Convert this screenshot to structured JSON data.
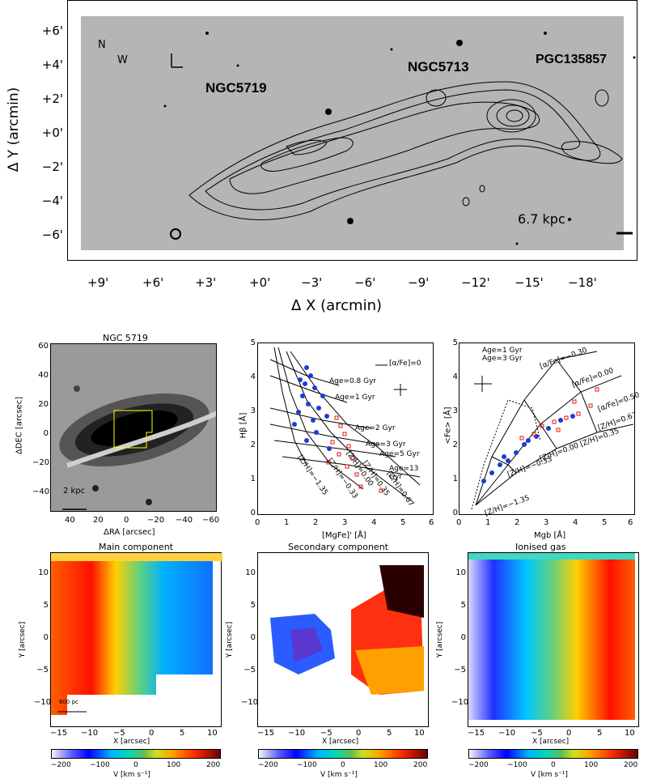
{
  "top_image": {
    "labels": {
      "ngc5719": "NGC5719",
      "ngc5713": "NGC5713",
      "pgc": "PGC135857",
      "scale": "6.7 kpc",
      "compass_n": "N",
      "compass_w": "W"
    },
    "xlabel": "Δ X (arcmin)",
    "ylabel": "Δ Y (arcmin)",
    "xticks": [
      "+9'",
      "+6'",
      "+3'",
      "+0'",
      "−3'",
      "−6'",
      "−9'",
      "−12'",
      "−15'",
      "−18'"
    ],
    "yticks": [
      "+6'",
      "+4'",
      "+2'",
      "+0'",
      "−2'",
      "−4'",
      "−6'"
    ]
  },
  "ngc5719_panel": {
    "title": "NGC 5719",
    "xlabel": "ΔRA [arcsec]",
    "ylabel": "ΔDEC [arcsec]",
    "scale": "2 kpc",
    "xticks": [
      "40",
      "20",
      "0",
      "−20",
      "−40",
      "−60"
    ],
    "yticks": [
      "60",
      "40",
      "20",
      "0",
      "−20",
      "−40"
    ]
  },
  "hbeta_panel": {
    "xlabel": "[MgFe]' [Å]",
    "ylabel": "Hβ [Å]",
    "legend": "[α/Fe]=0",
    "age_labels": [
      "Age=0.8 Gyr",
      "Age=1 Gyr",
      "Age=2 Gyr",
      "Age=3 Gyr",
      "Age=5 Gyr",
      "Age=13 Gyr"
    ],
    "zh_labels": [
      "[Z/H]=−1.35",
      "[Z/H]=−0.33",
      "[Z/H]=0.00",
      "[Z/H]=0.35",
      "[Z/H]=0.67"
    ],
    "xticks": [
      "0",
      "1",
      "2",
      "3",
      "4",
      "5",
      "6"
    ],
    "yticks": [
      "0",
      "1",
      "2",
      "3",
      "4",
      "5"
    ]
  },
  "fe_panel": {
    "xlabel": "Mgb [Å]",
    "ylabel": "<Fe> [Å]",
    "legend": [
      "Age=1 Gyr",
      "Age=3 Gyr"
    ],
    "alpha_labels": [
      "[α/Fe]=−0.30",
      "[α/Fe]=0.00",
      "[α/Fe]=0.50"
    ],
    "zh_labels": [
      "[Z/H]=0.67",
      "[Z/H]=0.35",
      "[Z/H]=0.00",
      "[Z/H]=−0.33",
      "[Z/H]=−1.35"
    ],
    "xticks": [
      "0",
      "1",
      "2",
      "3",
      "4",
      "5",
      "6"
    ],
    "yticks": [
      "0",
      "1",
      "2",
      "3",
      "4",
      "5"
    ]
  },
  "maps": [
    {
      "title": "Main component",
      "xlabel": "X [arcsec]",
      "ylabel": "Y [arcsec]",
      "scale": "600 pc"
    },
    {
      "title": "Secondary component",
      "xlabel": "X [arcsec]",
      "ylabel": "Y [arcsec]"
    },
    {
      "title": "Ionised gas",
      "xlabel": "X [arcsec]",
      "ylabel": "Y [arcsec]"
    }
  ],
  "map_ticks": {
    "x": [
      "−15",
      "−10",
      "−5",
      "0",
      "5",
      "10"
    ],
    "y": [
      "10",
      "5",
      "0",
      "−5",
      "−10"
    ]
  },
  "colorbar": {
    "ticks": [
      "−200",
      "−100",
      "0",
      "100",
      "200"
    ],
    "label": "V [km s⁻¹]"
  },
  "colors": {
    "blue": "#1f3bd6",
    "red": "#e0181a",
    "yellow": "#ffff00"
  }
}
